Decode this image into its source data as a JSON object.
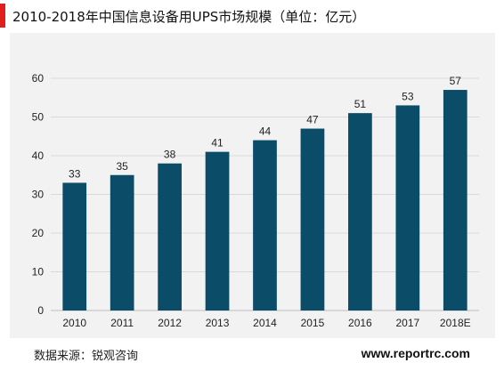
{
  "title": "2010-2018年中国信息设备用UPS市场规模（单位：亿元）",
  "source": "数据来源：锐观咨询",
  "website": "www.reportrc.com",
  "colors": {
    "bar": "#0b4c68",
    "accent": "#e01e1e",
    "plot_bg": "#f2f2f2",
    "grid": "#d9d9d9"
  },
  "chart_data": {
    "type": "bar",
    "title": "2010-2018年中国信息设备用UPS市场规模（单位：亿元）",
    "xlabel": "",
    "ylabel": "",
    "categories": [
      "2010",
      "2011",
      "2012",
      "2013",
      "2014",
      "2015",
      "2016",
      "2017",
      "2018E"
    ],
    "values": [
      33,
      35,
      38,
      41,
      44,
      47,
      51,
      53,
      57
    ],
    "ylim": [
      0,
      60
    ],
    "yticks": [
      0,
      10,
      20,
      30,
      40,
      50,
      60
    ],
    "grid": true,
    "legend": "none",
    "data_labels": true
  }
}
